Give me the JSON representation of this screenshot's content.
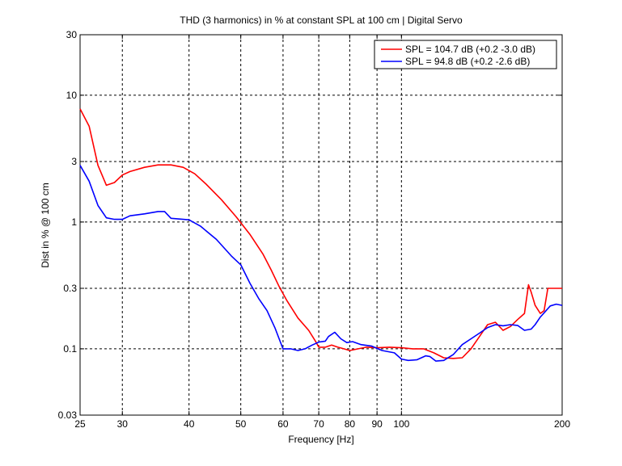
{
  "chart_data": {
    "type": "line",
    "title": "THD (3 harmonics) in % at constant SPL at 100 cm | Digital Servo",
    "xlabel": "Frequency [Hz]",
    "ylabel": "Dist in % @ 100 cm",
    "xscale": "log",
    "yscale": "log",
    "xlim": [
      25,
      200
    ],
    "ylim": [
      0.03,
      30
    ],
    "xticks": [
      25,
      30,
      40,
      50,
      60,
      70,
      80,
      90,
      100,
      200
    ],
    "xtick_labels": [
      "25",
      "30",
      "40",
      "50",
      "60",
      "70",
      "80",
      "90",
      "100",
      "200"
    ],
    "yticks": [
      0.03,
      0.1,
      0.3,
      1,
      3,
      10,
      30
    ],
    "ytick_labels": [
      "0.03",
      "0.1",
      "0.3",
      "1",
      "3",
      "10",
      "30"
    ],
    "grid": true,
    "legend_position": "top-right",
    "series": [
      {
        "name": "SPL = 104.7 dB (+0.2 -3.0 dB)",
        "color": "#ff0000",
        "points": [
          [
            25,
            7.8
          ],
          [
            26,
            5.7
          ],
          [
            27,
            2.8
          ],
          [
            28,
            1.95
          ],
          [
            29,
            2.05
          ],
          [
            30,
            2.35
          ],
          [
            31,
            2.5
          ],
          [
            33,
            2.7
          ],
          [
            35,
            2.82
          ],
          [
            37,
            2.82
          ],
          [
            39,
            2.7
          ],
          [
            41,
            2.4
          ],
          [
            43,
            2.0
          ],
          [
            46,
            1.5
          ],
          [
            49,
            1.1
          ],
          [
            52,
            0.8
          ],
          [
            55,
            0.56
          ],
          [
            57,
            0.42
          ],
          [
            59,
            0.31
          ],
          [
            61,
            0.24
          ],
          [
            64,
            0.175
          ],
          [
            67,
            0.14
          ],
          [
            69,
            0.115
          ],
          [
            70,
            0.103
          ],
          [
            72,
            0.103
          ],
          [
            74,
            0.107
          ],
          [
            76,
            0.103
          ],
          [
            78,
            0.1
          ],
          [
            80,
            0.097
          ],
          [
            83,
            0.1
          ],
          [
            86,
            0.103
          ],
          [
            90,
            0.102
          ],
          [
            95,
            0.103
          ],
          [
            100,
            0.102
          ],
          [
            105,
            0.1
          ],
          [
            110,
            0.1
          ],
          [
            115,
            0.093
          ],
          [
            120,
            0.085
          ],
          [
            125,
            0.084
          ],
          [
            130,
            0.085
          ],
          [
            135,
            0.1
          ],
          [
            140,
            0.125
          ],
          [
            145,
            0.155
          ],
          [
            150,
            0.162
          ],
          [
            155,
            0.14
          ],
          [
            160,
            0.15
          ],
          [
            165,
            0.17
          ],
          [
            170,
            0.19
          ],
          [
            173,
            0.32
          ],
          [
            175,
            0.28
          ],
          [
            178,
            0.22
          ],
          [
            182,
            0.19
          ],
          [
            185,
            0.2
          ],
          [
            188,
            0.3
          ],
          [
            192,
            0.3
          ],
          [
            200,
            0.3
          ]
        ]
      },
      {
        "name": "SPL = 94.8 dB (+0.2 -2.6 dB)",
        "color": "#0000ff",
        "points": [
          [
            25,
            2.8
          ],
          [
            26,
            2.1
          ],
          [
            27,
            1.35
          ],
          [
            28,
            1.08
          ],
          [
            29,
            1.05
          ],
          [
            30,
            1.05
          ],
          [
            31,
            1.12
          ],
          [
            33,
            1.16
          ],
          [
            35,
            1.21
          ],
          [
            36,
            1.21
          ],
          [
            37,
            1.07
          ],
          [
            39,
            1.05
          ],
          [
            40,
            1.04
          ],
          [
            42,
            0.93
          ],
          [
            45,
            0.73
          ],
          [
            48,
            0.54
          ],
          [
            50,
            0.46
          ],
          [
            52,
            0.33
          ],
          [
            54,
            0.25
          ],
          [
            56,
            0.2
          ],
          [
            58,
            0.145
          ],
          [
            59,
            0.12
          ],
          [
            60,
            0.1
          ],
          [
            62,
            0.1
          ],
          [
            64,
            0.097
          ],
          [
            66,
            0.1
          ],
          [
            68,
            0.107
          ],
          [
            70,
            0.113
          ],
          [
            72,
            0.115
          ],
          [
            73,
            0.125
          ],
          [
            75,
            0.135
          ],
          [
            77,
            0.12
          ],
          [
            79,
            0.112
          ],
          [
            81,
            0.114
          ],
          [
            84,
            0.108
          ],
          [
            88,
            0.105
          ],
          [
            92,
            0.097
          ],
          [
            97,
            0.093
          ],
          [
            100,
            0.083
          ],
          [
            103,
            0.081
          ],
          [
            107,
            0.082
          ],
          [
            111,
            0.088
          ],
          [
            113,
            0.087
          ],
          [
            116,
            0.08
          ],
          [
            120,
            0.081
          ],
          [
            125,
            0.09
          ],
          [
            130,
            0.108
          ],
          [
            135,
            0.12
          ],
          [
            140,
            0.133
          ],
          [
            145,
            0.147
          ],
          [
            150,
            0.155
          ],
          [
            155,
            0.152
          ],
          [
            160,
            0.155
          ],
          [
            165,
            0.153
          ],
          [
            170,
            0.14
          ],
          [
            175,
            0.143
          ],
          [
            178,
            0.155
          ],
          [
            182,
            0.178
          ],
          [
            186,
            0.197
          ],
          [
            190,
            0.218
          ],
          [
            195,
            0.225
          ],
          [
            200,
            0.22
          ]
        ]
      }
    ]
  }
}
